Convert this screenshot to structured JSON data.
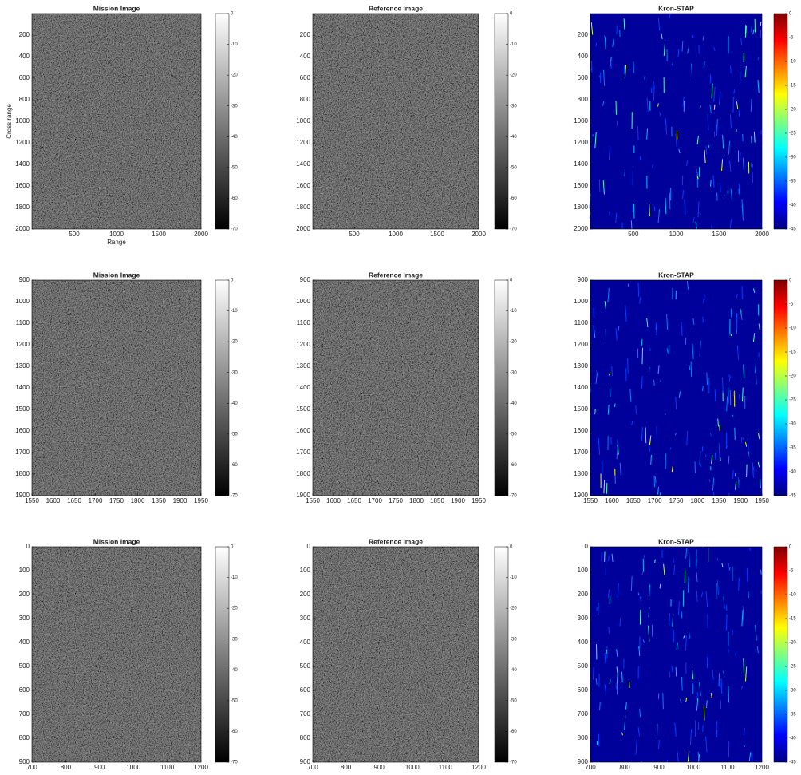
{
  "chart_data": [
    {
      "type": "image",
      "title": "Mission Image",
      "xlabel": "Range",
      "ylabel": "Cross range",
      "xlim": [
        0,
        2000
      ],
      "xticks": [
        500,
        1000,
        1500,
        2000
      ],
      "ylim": [
        0,
        2000
      ],
      "yreverse": true,
      "yticks": [
        200,
        400,
        600,
        800,
        1000,
        1200,
        1400,
        1600,
        1800,
        2000
      ],
      "colorbar": {
        "colormap": "gray",
        "lim": [
          -70,
          0
        ],
        "ticks": [
          0,
          -10,
          -20,
          -30,
          -40,
          -50,
          -60,
          -70
        ]
      }
    },
    {
      "type": "image",
      "title": "Reference Image",
      "xlim": [
        0,
        2000
      ],
      "xticks": [
        500,
        1000,
        1500,
        2000
      ],
      "ylim": [
        0,
        2000
      ],
      "yreverse": true,
      "yticks": [
        200,
        400,
        600,
        800,
        1000,
        1200,
        1400,
        1600,
        1800,
        2000
      ],
      "colorbar": {
        "colormap": "gray",
        "lim": [
          -70,
          0
        ],
        "ticks": [
          0,
          -10,
          -20,
          -30,
          -40,
          -50,
          -60,
          -70
        ]
      }
    },
    {
      "type": "image",
      "title": "Kron-STAP",
      "xlim": [
        0,
        2000
      ],
      "xticks": [
        500,
        1000,
        1500,
        2000
      ],
      "ylim": [
        0,
        2000
      ],
      "yreverse": true,
      "yticks": [
        200,
        400,
        600,
        800,
        1000,
        1200,
        1400,
        1600,
        1800,
        2000
      ],
      "colorbar": {
        "colormap": "jet",
        "lim": [
          -45,
          0
        ],
        "ticks": [
          0,
          -5,
          -10,
          -15,
          -20,
          -25,
          -30,
          -35,
          -40,
          -45
        ]
      }
    },
    {
      "type": "image",
      "title": "Mission Image",
      "xlim": [
        1550,
        1950
      ],
      "xticks": [
        1550,
        1600,
        1650,
        1700,
        1750,
        1800,
        1850,
        1900,
        1950
      ],
      "ylim": [
        900,
        1900
      ],
      "yreverse": true,
      "yticks": [
        900,
        1000,
        1100,
        1200,
        1300,
        1400,
        1500,
        1600,
        1700,
        1800,
        1900
      ],
      "colorbar": {
        "colormap": "gray",
        "lim": [
          -70,
          0
        ],
        "ticks": [
          0,
          -10,
          -20,
          -30,
          -40,
          -50,
          -60,
          -70
        ]
      }
    },
    {
      "type": "image",
      "title": "Reference Image",
      "xlim": [
        1550,
        1950
      ],
      "xticks": [
        1550,
        1600,
        1650,
        1700,
        1750,
        1800,
        1850,
        1900,
        1950
      ],
      "ylim": [
        900,
        1900
      ],
      "yreverse": true,
      "yticks": [
        900,
        1000,
        1100,
        1200,
        1300,
        1400,
        1500,
        1600,
        1700,
        1800,
        1900
      ],
      "colorbar": {
        "colormap": "gray",
        "lim": [
          -70,
          0
        ],
        "ticks": [
          0,
          -10,
          -20,
          -30,
          -40,
          -50,
          -60,
          -70
        ]
      }
    },
    {
      "type": "image",
      "title": "Kron-STAP",
      "xlim": [
        1550,
        1950
      ],
      "xticks": [
        1550,
        1600,
        1650,
        1700,
        1750,
        1800,
        1850,
        1900,
        1950
      ],
      "ylim": [
        900,
        1900
      ],
      "yreverse": true,
      "yticks": [
        900,
        1000,
        1100,
        1200,
        1300,
        1400,
        1500,
        1600,
        1700,
        1800,
        1900
      ],
      "colorbar": {
        "colormap": "jet",
        "lim": [
          -45,
          0
        ],
        "ticks": [
          0,
          -5,
          -10,
          -15,
          -20,
          -25,
          -30,
          -35,
          -40,
          -45
        ]
      }
    },
    {
      "type": "image",
      "title": "Mission Image",
      "xlim": [
        700,
        1200
      ],
      "xticks": [
        700,
        800,
        900,
        1000,
        1100,
        1200
      ],
      "ylim": [
        0,
        900
      ],
      "yreverse": true,
      "yticks": [
        0,
        100,
        200,
        300,
        400,
        500,
        600,
        700,
        800,
        900
      ],
      "colorbar": {
        "colormap": "gray",
        "lim": [
          -70,
          0
        ],
        "ticks": [
          0,
          -10,
          -20,
          -30,
          -40,
          -50,
          -60,
          -70
        ]
      }
    },
    {
      "type": "image",
      "title": "Reference Image",
      "xlim": [
        700,
        1200
      ],
      "xticks": [
        700,
        800,
        900,
        1000,
        1100,
        1200
      ],
      "ylim": [
        0,
        900
      ],
      "yreverse": true,
      "yticks": [
        0,
        100,
        200,
        300,
        400,
        500,
        600,
        700,
        800,
        900
      ],
      "colorbar": {
        "colormap": "gray",
        "lim": [
          -70,
          0
        ],
        "ticks": [
          0,
          -10,
          -20,
          -30,
          -40,
          -50,
          -60,
          -70
        ]
      }
    },
    {
      "type": "image",
      "title": "Kron-STAP",
      "xlim": [
        700,
        1200
      ],
      "xticks": [
        700,
        800,
        900,
        1000,
        1100,
        1200
      ],
      "ylim": [
        0,
        900
      ],
      "yreverse": true,
      "yticks": [
        0,
        100,
        200,
        300,
        400,
        500,
        600,
        700,
        800,
        900
      ],
      "colorbar": {
        "colormap": "jet",
        "lim": [
          -45,
          0
        ],
        "ticks": [
          0,
          -5,
          -10,
          -15,
          -20,
          -25,
          -30,
          -35,
          -40,
          -45
        ]
      }
    }
  ]
}
